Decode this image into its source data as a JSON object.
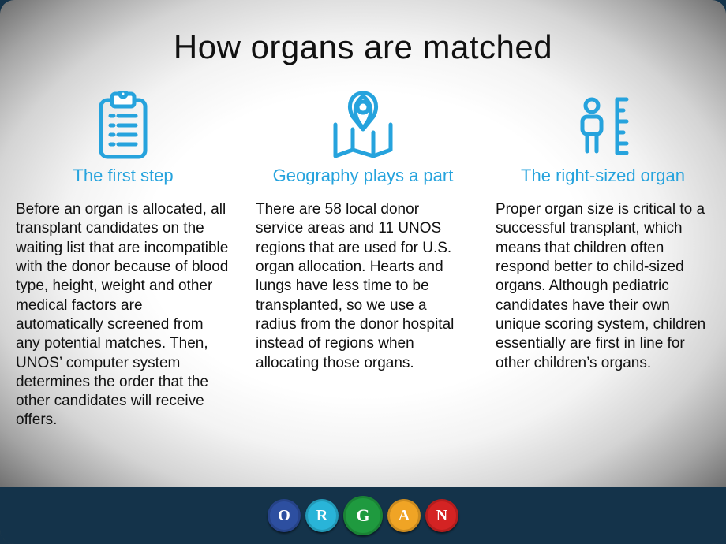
{
  "title": "How organs are matched",
  "accent_color": "#26a3dd",
  "text_color": "#111111",
  "background_gradient": {
    "type": "radial",
    "center": "#ffffff",
    "edge": "#4a4a4a"
  },
  "columns": [
    {
      "icon": "clipboard-list",
      "subtitle": "The first step",
      "body": "Before an organ is allocated, all transplant candidates on the waiting list that are incompatible with the donor because of blood type, height, weight and other medical factors are automatically screened from any potential matches. Then, UNOS’ computer system determines the order that the other candidates will receive offers."
    },
    {
      "icon": "map-pin",
      "subtitle": "Geography plays a part",
      "body": "There are 58 local donor service areas and 11 UNOS regions that are used for U.S. organ allocation. Hearts and lungs have less time to be transplanted, so we use a radius from the donor hospital instead of regions when allocating those organs."
    },
    {
      "icon": "person-ruler",
      "subtitle": "The right-sized organ",
      "body": "Proper organ size is critical to a successful transplant, which means that children often respond better to child-sized organs. Although pediatric candidates have their own unique scoring system, children essentially are first in line for other children’s organs."
    }
  ],
  "footer": {
    "background": "#14334a",
    "letters": [
      {
        "letter": "O",
        "bg": "#2d4fa0",
        "fg": "#ffffff",
        "big": false
      },
      {
        "letter": "R",
        "bg": "#29b4d8",
        "fg": "#ffffff",
        "big": false
      },
      {
        "letter": "G",
        "bg": "#1f9a3f",
        "fg": "#ffffff",
        "big": true
      },
      {
        "letter": "A",
        "bg": "#f0a425",
        "fg": "#ffffff",
        "big": false
      },
      {
        "letter": "N",
        "bg": "#d42323",
        "fg": "#ffffff",
        "big": false
      }
    ]
  }
}
